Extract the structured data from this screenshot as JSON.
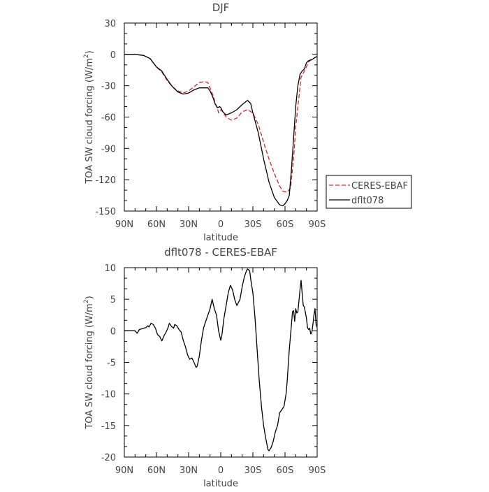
{
  "chart_data": [
    {
      "type": "line",
      "title": "DJF",
      "xlabel": "latitude",
      "ylabel_main": "TOA SW cloud forcing (W/m",
      "ylabel_sup": "2",
      "ylabel_tail": ")",
      "xlim": [
        90,
        -90
      ],
      "ylim": [
        -150,
        30
      ],
      "x_ticks": [
        {
          "value": 90,
          "label": "90N"
        },
        {
          "value": 60,
          "label": "60N"
        },
        {
          "value": 30,
          "label": "30N"
        },
        {
          "value": 0,
          "label": "0"
        },
        {
          "value": -30,
          "label": "30S"
        },
        {
          "value": -60,
          "label": "60S"
        },
        {
          "value": -90,
          "label": "90S"
        }
      ],
      "y_ticks": [
        30,
        0,
        -30,
        -60,
        -90,
        -120,
        -150
      ],
      "legend_position": "right",
      "series": [
        {
          "name": "CERES-EBAF",
          "color": "#dd2222",
          "dash": "dashed",
          "points": [
            [
              90,
              0
            ],
            [
              80,
              0
            ],
            [
              72,
              -1
            ],
            [
              66,
              -4
            ],
            [
              60,
              -12
            ],
            [
              55,
              -17
            ],
            [
              50,
              -25
            ],
            [
              45,
              -31
            ],
            [
              40,
              -35
            ],
            [
              35,
              -37
            ],
            [
              30,
              -35
            ],
            [
              25,
              -31
            ],
            [
              20,
              -27
            ],
            [
              15,
              -26
            ],
            [
              12,
              -27
            ],
            [
              10,
              -32
            ],
            [
              7,
              -40
            ],
            [
              5,
              -47
            ],
            [
              3,
              -52
            ],
            [
              2,
              -56
            ],
            [
              0,
              -53
            ],
            [
              -2,
              -55
            ],
            [
              -5,
              -60
            ],
            [
              -10,
              -63
            ],
            [
              -15,
              -61
            ],
            [
              -20,
              -55
            ],
            [
              -25,
              -53
            ],
            [
              -30,
              -56
            ],
            [
              -35,
              -67
            ],
            [
              -40,
              -84
            ],
            [
              -45,
              -100
            ],
            [
              -50,
              -114
            ],
            [
              -55,
              -126
            ],
            [
              -58,
              -131
            ],
            [
              -62,
              -132
            ],
            [
              -65,
              -128
            ],
            [
              -68,
              -100
            ],
            [
              -70,
              -70
            ],
            [
              -72,
              -50
            ],
            [
              -75,
              -22
            ],
            [
              -78,
              -16
            ],
            [
              -80,
              -12
            ],
            [
              -82,
              -7
            ],
            [
              -85,
              -5
            ],
            [
              -88,
              -3
            ],
            [
              -90,
              -2
            ]
          ]
        },
        {
          "name": "dflt078",
          "color": "#000000",
          "dash": "solid",
          "points": [
            [
              90,
              0
            ],
            [
              80,
              0
            ],
            [
              72,
              -1
            ],
            [
              66,
              -4
            ],
            [
              60,
              -12
            ],
            [
              55,
              -16
            ],
            [
              50,
              -24
            ],
            [
              45,
              -31
            ],
            [
              40,
              -36
            ],
            [
              35,
              -38
            ],
            [
              30,
              -37
            ],
            [
              25,
              -34
            ],
            [
              20,
              -32
            ],
            [
              15,
              -32
            ],
            [
              12,
              -32
            ],
            [
              10,
              -35
            ],
            [
              7,
              -42
            ],
            [
              5,
              -48
            ],
            [
              3,
              -51
            ],
            [
              1,
              -50
            ],
            [
              0,
              -51
            ],
            [
              -2,
              -55
            ],
            [
              -5,
              -58
            ],
            [
              -10,
              -56
            ],
            [
              -15,
              -53
            ],
            [
              -20,
              -48
            ],
            [
              -25,
              -44
            ],
            [
              -28,
              -47
            ],
            [
              -30,
              -56
            ],
            [
              -35,
              -75
            ],
            [
              -40,
              -100
            ],
            [
              -45,
              -122
            ],
            [
              -50,
              -137
            ],
            [
              -55,
              -144
            ],
            [
              -58,
              -145
            ],
            [
              -60,
              -143
            ],
            [
              -62,
              -140
            ],
            [
              -64,
              -135
            ],
            [
              -66,
              -110
            ],
            [
              -68,
              -80
            ],
            [
              -70,
              -50
            ],
            [
              -72,
              -30
            ],
            [
              -74,
              -19
            ],
            [
              -76,
              -16
            ],
            [
              -78,
              -14
            ],
            [
              -80,
              -8
            ],
            [
              -82,
              -6
            ],
            [
              -85,
              -5
            ],
            [
              -88,
              -3
            ],
            [
              -90,
              -2
            ]
          ]
        }
      ]
    },
    {
      "type": "line",
      "title": "dflt078 - CERES-EBAF",
      "xlabel": "latitude",
      "ylabel_main": "TOA SW cloud forcing (W/m",
      "ylabel_sup": "2",
      "ylabel_tail": ")",
      "xlim": [
        90,
        -90
      ],
      "ylim": [
        -20,
        10
      ],
      "x_ticks": [
        {
          "value": 90,
          "label": "90N"
        },
        {
          "value": 60,
          "label": "60N"
        },
        {
          "value": 30,
          "label": "30N"
        },
        {
          "value": 0,
          "label": "0"
        },
        {
          "value": -30,
          "label": "30S"
        },
        {
          "value": -60,
          "label": "60S"
        },
        {
          "value": -90,
          "label": "90S"
        }
      ],
      "y_ticks": [
        10,
        5,
        0,
        -5,
        -10,
        -15,
        -20
      ],
      "series": [
        {
          "name": "",
          "color": "#000000",
          "dash": "solid",
          "points": [
            [
              90,
              0
            ],
            [
              80,
              0
            ],
            [
              78,
              -0.4
            ],
            [
              76,
              0.2
            ],
            [
              72,
              0.4
            ],
            [
              70,
              0.5
            ],
            [
              68,
              0.8
            ],
            [
              67,
              0.6
            ],
            [
              65,
              1.2
            ],
            [
              63,
              1
            ],
            [
              61,
              0.4
            ],
            [
              59,
              -0.6
            ],
            [
              57,
              -0.9
            ],
            [
              55,
              -1.6
            ],
            [
              53,
              -0.8
            ],
            [
              51,
              -0.2
            ],
            [
              49,
              0.6
            ],
            [
              48,
              1.2
            ],
            [
              46,
              0.7
            ],
            [
              44,
              0.4
            ],
            [
              43,
              1
            ],
            [
              41,
              0.8
            ],
            [
              39,
              0.2
            ],
            [
              37,
              -0.2
            ],
            [
              35,
              -1.5
            ],
            [
              33,
              -2.5
            ],
            [
              31,
              -3.8
            ],
            [
              29,
              -4.5
            ],
            [
              27,
              -4.3
            ],
            [
              25,
              -5
            ],
            [
              23,
              -5.8
            ],
            [
              22,
              -5.6
            ],
            [
              20,
              -4
            ],
            [
              18,
              -1.5
            ],
            [
              16,
              0.5
            ],
            [
              14,
              1.5
            ],
            [
              12,
              2.5
            ],
            [
              10,
              3.5
            ],
            [
              8,
              5
            ],
            [
              6,
              3.5
            ],
            [
              4,
              2.5
            ],
            [
              2,
              0
            ],
            [
              0,
              -1.5
            ],
            [
              -1,
              -0.8
            ],
            [
              -3,
              2
            ],
            [
              -5,
              4
            ],
            [
              -7,
              6
            ],
            [
              -9,
              7.2
            ],
            [
              -11,
              6.5
            ],
            [
              -13,
              5
            ],
            [
              -15,
              4
            ],
            [
              -16,
              4.3
            ],
            [
              -18,
              5
            ],
            [
              -20,
              7
            ],
            [
              -22,
              8.5
            ],
            [
              -24,
              9.5
            ],
            [
              -25,
              9.8
            ],
            [
              -27,
              9.5
            ],
            [
              -28,
              8.2
            ],
            [
              -30,
              6
            ],
            [
              -32,
              2
            ],
            [
              -34,
              -3
            ],
            [
              -36,
              -8
            ],
            [
              -38,
              -12
            ],
            [
              -40,
              -15
            ],
            [
              -42,
              -17
            ],
            [
              -44,
              -18.8
            ],
            [
              -45,
              -19
            ],
            [
              -47,
              -18.5
            ],
            [
              -49,
              -17.5
            ],
            [
              -51,
              -16
            ],
            [
              -53,
              -15
            ],
            [
              -55,
              -13
            ],
            [
              -57,
              -12.5
            ],
            [
              -59,
              -12
            ],
            [
              -61,
              -10
            ],
            [
              -62,
              -8
            ],
            [
              -64,
              -3
            ],
            [
              -66,
              1
            ],
            [
              -67,
              3
            ],
            [
              -68,
              3.2
            ],
            [
              -69,
              1.5
            ],
            [
              -70,
              3.5
            ],
            [
              -71,
              2.8
            ],
            [
              -72,
              3
            ],
            [
              -74,
              6.5
            ],
            [
              -75,
              8
            ],
            [
              -76,
              6
            ],
            [
              -77,
              4
            ],
            [
              -78,
              3.8
            ],
            [
              -80,
              2
            ],
            [
              -81,
              0.5
            ],
            [
              -82,
              0.2
            ],
            [
              -83,
              0.4
            ],
            [
              -84,
              -0.5
            ],
            [
              -85,
              -0.3
            ],
            [
              -86,
              1
            ],
            [
              -87,
              2.5
            ],
            [
              -88,
              3.5
            ],
            [
              -89,
              1
            ],
            [
              -90,
              0.5
            ]
          ]
        }
      ]
    }
  ]
}
